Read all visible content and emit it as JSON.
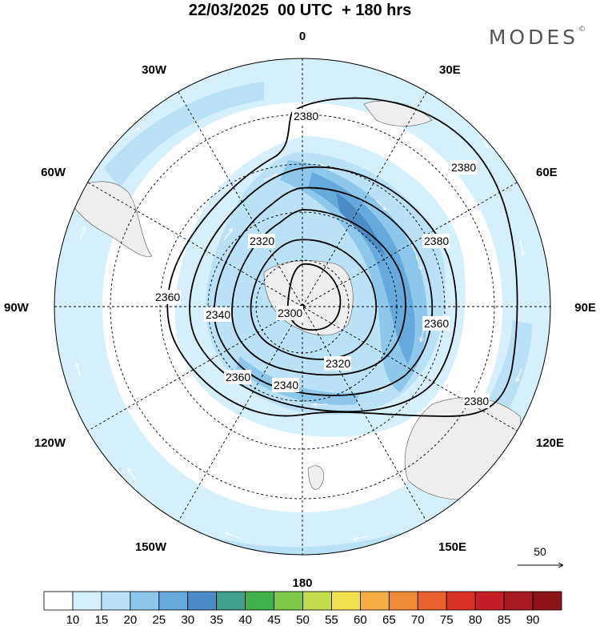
{
  "title": "22/03/2025  00 UTC  + 180 hrs",
  "brand": "MODES",
  "brand_mark": "©",
  "longitude_labels": {
    "n": "0",
    "s": "180",
    "e": "90E",
    "w": "90W",
    "e30": "30E",
    "e60": "60E",
    "e120": "120E",
    "e150": "150E",
    "w30": "30W",
    "w60": "60W",
    "w120": "120W",
    "w150": "150W"
  },
  "contour_labels": {
    "c2380a": "2380",
    "c2380b": "2380",
    "c2380c": "2380",
    "c2380d": "2380",
    "c2360a": "2360",
    "c2360b": "2360",
    "c2360c": "2360",
    "c2340a": "2340",
    "c2340b": "2340",
    "c2320a": "2320",
    "c2320b": "2320",
    "c2300": "2300"
  },
  "vector_reference": "50",
  "colorbar": {
    "ticks": [
      "10",
      "15",
      "20",
      "25",
      "30",
      "35",
      "40",
      "45",
      "50",
      "55",
      "60",
      "65",
      "70",
      "75",
      "80",
      "85",
      "90"
    ],
    "colors": [
      "#ffffff",
      "#d6f0fb",
      "#b9e2f6",
      "#8dc8ec",
      "#66a9dc",
      "#4b8cc7",
      "#3fa08c",
      "#3fb04a",
      "#7ec84a",
      "#c3dc4a",
      "#f5e04e",
      "#f4ae42",
      "#ef8a35",
      "#e8602c",
      "#d93227",
      "#c61e26",
      "#a81a22",
      "#8c141b"
    ]
  },
  "contours": [
    2300,
    2320,
    2340,
    2360,
    2380
  ]
}
